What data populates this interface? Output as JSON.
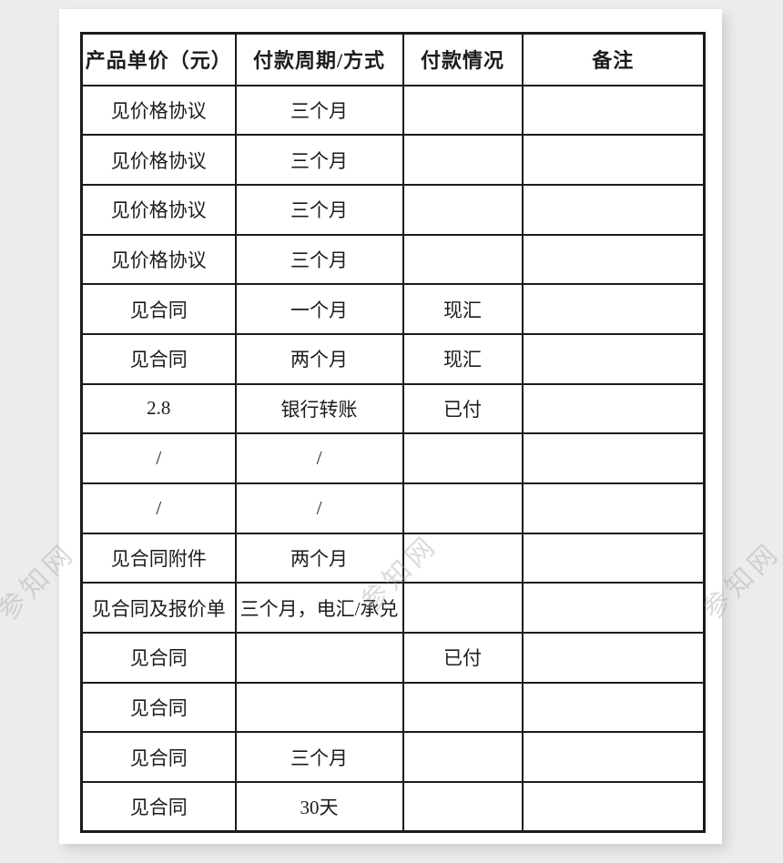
{
  "colors": {
    "canvas_background": "#ececee",
    "page_background": "#ffffff",
    "table_border": "#1b1b1b",
    "text": "#1c1c1c",
    "watermark": "#a0a0a0"
  },
  "watermark": {
    "text": "参知网"
  },
  "table": {
    "headers": [
      "产品单价（元）",
      "付款周期/方式",
      "付款情况",
      "备注"
    ],
    "rows": [
      [
        "见价格协议",
        "三个月",
        "",
        ""
      ],
      [
        "见价格协议",
        "三个月",
        "",
        ""
      ],
      [
        "见价格协议",
        "三个月",
        "",
        ""
      ],
      [
        "见价格协议",
        "三个月",
        "",
        ""
      ],
      [
        "见合同",
        "一个月",
        "现汇",
        ""
      ],
      [
        "见合同",
        "两个月",
        "现汇",
        ""
      ],
      [
        "2.8",
        "银行转账",
        "已付",
        ""
      ],
      [
        "/",
        "/",
        "",
        ""
      ],
      [
        "/",
        "/",
        "",
        ""
      ],
      [
        "见合同附件",
        "两个月",
        "",
        ""
      ],
      [
        "见合同及报价单",
        "三个月，电汇/承兑",
        "",
        ""
      ],
      [
        "见合同",
        "",
        "已付",
        ""
      ],
      [
        "见合同",
        "",
        "",
        ""
      ],
      [
        "见合同",
        "三个月",
        "",
        ""
      ],
      [
        "见合同",
        "30天",
        "",
        ""
      ]
    ]
  }
}
